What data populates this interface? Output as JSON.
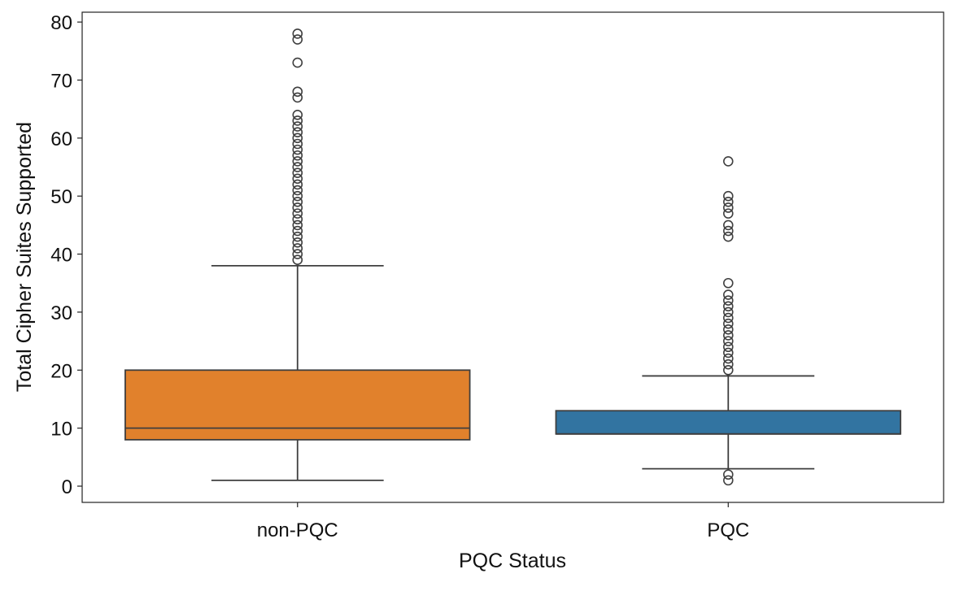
{
  "chart_data": {
    "type": "box",
    "title": "",
    "xlabel": "PQC Status",
    "ylabel": "Total Cipher Suites Supported",
    "ylim": [
      -2.8,
      81.7
    ],
    "yticks": [
      0,
      10,
      20,
      30,
      40,
      50,
      60,
      70,
      80
    ],
    "grid": false,
    "categories": [
      "non-PQC",
      "PQC"
    ],
    "series": [
      {
        "name": "non-PQC",
        "color": "#e1812c",
        "whisker_low": 1,
        "q1": 8,
        "median": 10,
        "q3": 20,
        "whisker_high": 38,
        "outliers": [
          39,
          40,
          41,
          42,
          43,
          44,
          45,
          46,
          47,
          48,
          49,
          50,
          51,
          52,
          53,
          54,
          55,
          56,
          57,
          58,
          59,
          60,
          61,
          62,
          63,
          64,
          67,
          68,
          73,
          77,
          78
        ]
      },
      {
        "name": "PQC",
        "color": "#3274a1",
        "whisker_low": 3,
        "q1": 9,
        "median": 9,
        "q3": 13,
        "whisker_high": 19,
        "outliers": [
          1,
          2,
          20,
          21,
          22,
          23,
          24,
          25,
          26,
          27,
          28,
          29,
          30,
          31,
          32,
          33,
          35,
          43,
          44,
          45,
          47,
          48,
          49,
          50,
          56
        ]
      }
    ]
  }
}
